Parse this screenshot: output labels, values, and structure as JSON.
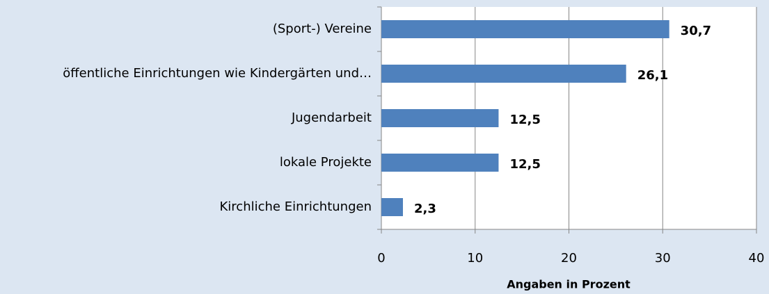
{
  "chart_data": {
    "type": "hbar",
    "categories": [
      "(Sport-) Vereine",
      "öffentliche Einrichtungen wie Kindergärten und…",
      "Jugendarbeit",
      "lokale Projekte",
      "Kirchliche Einrichtungen"
    ],
    "values": [
      30.7,
      26.1,
      12.5,
      12.5,
      2.3
    ],
    "value_labels": [
      "30,7",
      "26,1",
      "12,5",
      "12,5",
      "2,3"
    ],
    "color": "#4f81bd",
    "xlim": [
      0,
      40
    ],
    "xticks": [
      0,
      10,
      20,
      30,
      40
    ],
    "grid": true,
    "x_label": "Angaben in Prozent"
  }
}
